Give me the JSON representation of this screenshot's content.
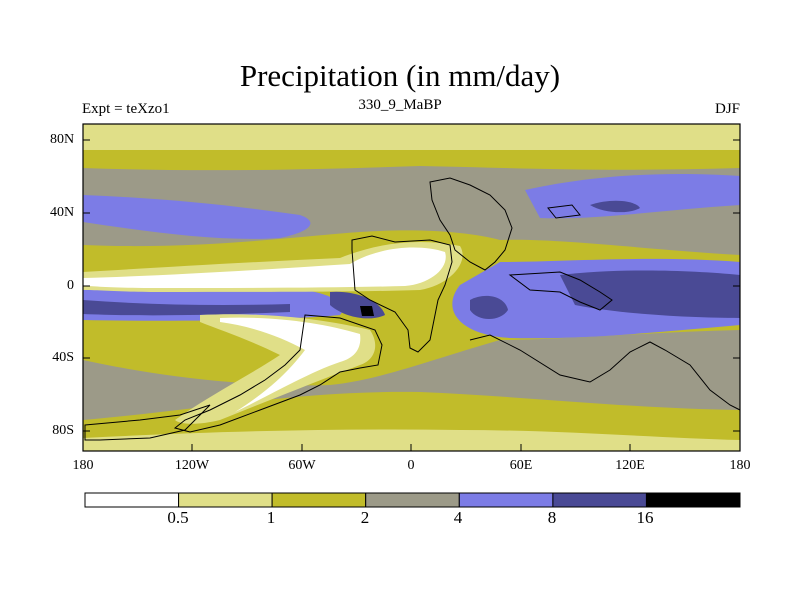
{
  "title": "Precipitation (in mm/day)",
  "left_label": "Expt = teXzo1",
  "center_label": "330_9_MaBP",
  "right_label": "DJF",
  "lat_ticks": [
    "80N",
    "40N",
    "0",
    "40S",
    "80S"
  ],
  "lon_ticks": [
    "180",
    "120W",
    "60W",
    "0",
    "60E",
    "120E",
    "180"
  ],
  "colorbar": {
    "labels": [
      "0.5",
      "1",
      "2",
      "4",
      "8",
      "16"
    ],
    "colors": [
      "#ffffff",
      "#e0df88",
      "#c1bc2a",
      "#9c9a88",
      "#7c7ce6",
      "#4a4a95",
      "#000000"
    ]
  }
}
